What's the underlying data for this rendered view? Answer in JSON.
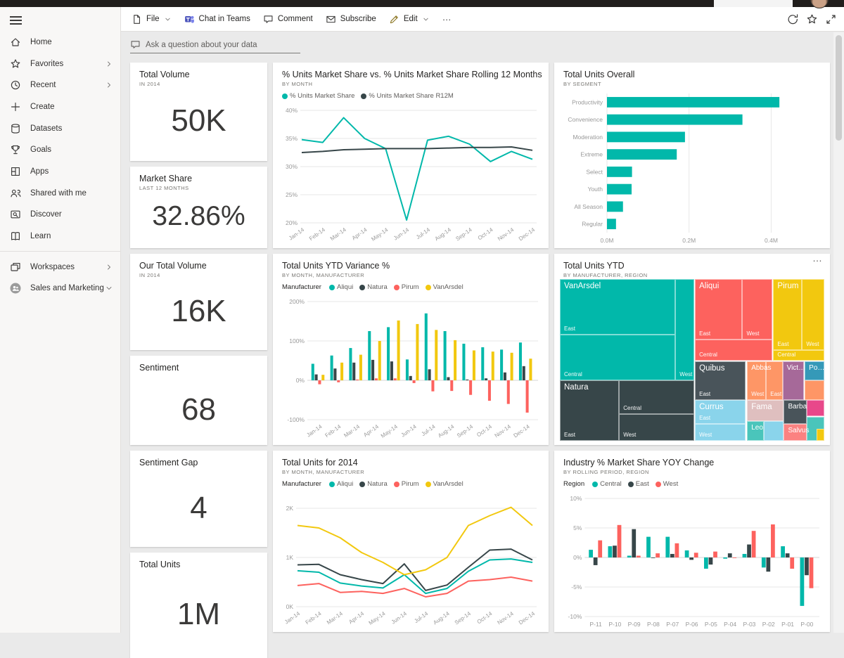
{
  "qna": {
    "placeholder": "Ask a question about your data"
  },
  "toolbar": {
    "items": [
      {
        "label": "File",
        "icon": "file",
        "chevron": true
      },
      {
        "label": "Chat in Teams",
        "icon": "teams",
        "chevron": false
      },
      {
        "label": "Comment",
        "icon": "comment",
        "chevron": false
      },
      {
        "label": "Subscribe",
        "icon": "mail",
        "chevron": false
      },
      {
        "label": "Edit",
        "icon": "pencil",
        "chevron": true
      },
      {
        "label": "…",
        "icon": "more",
        "chevron": false
      }
    ],
    "right_icons": [
      "refresh",
      "star",
      "expand"
    ]
  },
  "sidebar": {
    "items": [
      {
        "label": "Home",
        "icon": "home",
        "chevron": ""
      },
      {
        "label": "Favorites",
        "icon": "star",
        "chevron": "right"
      },
      {
        "label": "Recent",
        "icon": "clock",
        "chevron": "right"
      },
      {
        "label": "Create",
        "icon": "plus",
        "chevron": ""
      },
      {
        "label": "Datasets",
        "icon": "database",
        "chevron": ""
      },
      {
        "label": "Goals",
        "icon": "goal",
        "chevron": ""
      },
      {
        "label": "Apps",
        "icon": "apps",
        "chevron": ""
      },
      {
        "label": "Shared with me",
        "icon": "people",
        "chevron": ""
      },
      {
        "label": "Discover",
        "icon": "discover",
        "chevron": ""
      },
      {
        "label": "Learn",
        "icon": "book",
        "chevron": ""
      }
    ],
    "bottom_items": [
      {
        "label": "Workspaces",
        "icon": "workspaces",
        "chevron": "right"
      },
      {
        "label": "Sales and Marketing",
        "icon": "group-avatar",
        "chevron": "down"
      }
    ]
  },
  "kpis": [
    {
      "id": "total-volume",
      "title": "Total Volume",
      "subtitle": "IN 2014",
      "value": "50K"
    },
    {
      "id": "market-share",
      "title": "Market Share",
      "subtitle": "LAST 12 MONTHS",
      "value": "32.86%"
    },
    {
      "id": "our-total-volume",
      "title": "Our Total Volume",
      "subtitle": "IN 2014",
      "value": "16K"
    },
    {
      "id": "sentiment",
      "title": "Sentiment",
      "subtitle": "",
      "value": "68"
    },
    {
      "id": "sentiment-gap",
      "title": "Sentiment Gap",
      "subtitle": "",
      "value": "4"
    },
    {
      "id": "total-units",
      "title": "Total Units",
      "subtitle": "",
      "value": "1M"
    }
  ],
  "chart_data": [
    {
      "id": "units-market-share",
      "type": "line",
      "title": "% Units Market Share vs. % Units Market Share Rolling 12 Months",
      "subtitle": "BY MONTH",
      "legend_prefix": "",
      "categories": [
        "Jan-14",
        "Feb-14",
        "Mar-14",
        "Apr-14",
        "May-14",
        "Jun-14",
        "Jul-14",
        "Aug-14",
        "Sep-14",
        "Oct-14",
        "Nov-14",
        "Dec-14"
      ],
      "series": [
        {
          "name": "% Units Market Share",
          "color": "#01B8AA",
          "values": [
            34.8,
            34.3,
            38.7,
            35.0,
            33.2,
            20.5,
            34.7,
            35.4,
            34.0,
            30.9,
            32.7,
            31.3
          ]
        },
        {
          "name": "% Units Market Share R12M",
          "color": "#374649",
          "values": [
            32.5,
            32.7,
            33.0,
            33.1,
            33.2,
            33.2,
            33.2,
            33.3,
            33.4,
            33.4,
            33.5,
            32.9
          ]
        }
      ],
      "ylim": [
        20,
        40
      ],
      "yticks": [
        20,
        25,
        30,
        35,
        40
      ],
      "yfmt": "%",
      "rotate_x": true,
      "grid": true
    },
    {
      "id": "total-units-overall",
      "type": "barh",
      "title": "Total Units Overall",
      "subtitle": "BY SEGMENT",
      "categories": [
        "Productivity",
        "Convenience",
        "Moderation",
        "Extreme",
        "Select",
        "Youth",
        "All Season",
        "Regular"
      ],
      "values": [
        0.42,
        0.33,
        0.19,
        0.17,
        0.061,
        0.06,
        0.039,
        0.022
      ],
      "color": "#01B8AA",
      "xlim": [
        0,
        0.49
      ],
      "xticks": [
        0,
        0.2,
        0.4
      ],
      "xtick_labels": [
        "0.0M",
        "0.2M",
        "0.4M"
      ],
      "grid": true
    },
    {
      "id": "ytd-variance",
      "type": "column",
      "title": "Total Units YTD Variance %",
      "subtitle": "BY MONTH, MANUFACTURER",
      "legend_prefix": "Manufacturer",
      "categories": [
        "Jan-14",
        "Feb-14",
        "Mar-14",
        "Apr-14",
        "May-14",
        "Jun-14",
        "Jul-14",
        "Aug-14",
        "Sep-14",
        "Oct-14",
        "Nov-14",
        "Dec-14"
      ],
      "series": [
        {
          "name": "Aliqui",
          "color": "#01B8AA",
          "values": [
            42,
            63,
            82,
            125,
            135,
            53,
            170,
            125,
            93,
            84,
            78,
            96
          ]
        },
        {
          "name": "Natura",
          "color": "#374649",
          "values": [
            15,
            30,
            45,
            52,
            48,
            11,
            28,
            8,
            2,
            5,
            20,
            36
          ]
        },
        {
          "name": "Pirum",
          "color": "#FD625E",
          "values": [
            -10,
            -5,
            2,
            5,
            5,
            -7,
            -28,
            -27,
            -37,
            -52,
            -60,
            -82
          ]
        },
        {
          "name": "VanArsdel",
          "color": "#F2C80F",
          "values": [
            14,
            45,
            65,
            100,
            152,
            143,
            128,
            102,
            76,
            73,
            70,
            55
          ]
        }
      ],
      "ylim": [
        -100,
        200
      ],
      "yticks": [
        -100,
        0,
        100,
        200
      ],
      "yfmt": "%",
      "rotate_x": true,
      "grid": true
    },
    {
      "id": "total-units-ytd",
      "type": "treemap",
      "title": "Total Units YTD",
      "subtitle": "BY MANUFACTURER, REGION",
      "more_icon": "ellipsis",
      "tiles": [
        {
          "t": "VanArsdel",
          "r": "East",
          "c": "#01B8AA",
          "x": 0,
          "y": 0,
          "w": 43.7,
          "h": 34.5
        },
        {
          "r": "Central",
          "c": "#01B8AA",
          "x": 0,
          "y": 34.5,
          "w": 43.7,
          "h": 28.2
        },
        {
          "r": "West",
          "c": "#01B8AA",
          "x": 43.7,
          "y": 0,
          "w": 7.1,
          "h": 62.7
        },
        {
          "t": "Natura",
          "r": "East",
          "c": "#374649",
          "x": 0,
          "y": 62.7,
          "w": 22.4,
          "h": 37.3
        },
        {
          "r": "Central",
          "c": "#374649",
          "x": 22.4,
          "y": 62.7,
          "w": 28.4,
          "h": 20.6
        },
        {
          "r": "West",
          "c": "#374649",
          "x": 22.4,
          "y": 83.3,
          "w": 28.4,
          "h": 16.7
        },
        {
          "t": "Aliqui",
          "r": "East",
          "c": "#FD625E",
          "x": 51.1,
          "y": 0,
          "w": 17.9,
          "h": 37.3
        },
        {
          "r": "West",
          "c": "#FD625E",
          "x": 69,
          "y": 0,
          "w": 11.3,
          "h": 37.3
        },
        {
          "r": "Central",
          "c": "#FD625E",
          "x": 51.1,
          "y": 37.3,
          "w": 29.2,
          "h": 13.1
        },
        {
          "t": "Pirum",
          "r": "East",
          "c": "#F2C80F",
          "x": 80.7,
          "y": 0,
          "w": 10.9,
          "h": 43.9
        },
        {
          "r": "West",
          "c": "#F2C80F",
          "x": 91.6,
          "y": 0,
          "w": 8.4,
          "h": 43.9
        },
        {
          "r": "Central",
          "c": "#F2C80F",
          "x": 80.7,
          "y": 43.9,
          "w": 19.3,
          "h": 6.5
        },
        {
          "t": "Quibus",
          "r": "East",
          "c": "#49545A",
          "x": 51.1,
          "y": 50.7,
          "w": 19.2,
          "h": 23.9
        },
        {
          "t": "Abbas",
          "r": "West",
          "c": "#FE9666",
          "x": 70.8,
          "y": 50.7,
          "w": 7.2,
          "h": 23.9
        },
        {
          "r": "East",
          "c": "#FE9666",
          "x": 78,
          "y": 50.7,
          "w": 6.2,
          "h": 23.9
        },
        {
          "t": "Vict…",
          "c": "#A66999",
          "x": 84.2,
          "y": 50.7,
          "w": 8.2,
          "h": 23.9
        },
        {
          "t": "Po…",
          "c": "#3599B8",
          "x": 92.6,
          "y": 50.7,
          "w": 7.4,
          "h": 11.8
        },
        {
          "c": "#FE9666",
          "x": 92.6,
          "y": 62.5,
          "w": 7.4,
          "h": 12.1
        },
        {
          "t": "Currus",
          "r": "East",
          "c": "#8AD4EB",
          "x": 51.1,
          "y": 74.6,
          "w": 19.2,
          "h": 15
        },
        {
          "r": "West",
          "c": "#8AD4EB",
          "x": 51.1,
          "y": 89.6,
          "w": 19.2,
          "h": 10.4
        },
        {
          "t": "Fama",
          "c": "#DFBFBF",
          "x": 70.8,
          "y": 74.6,
          "w": 13.9,
          "h": 13.1
        },
        {
          "t": "Leo",
          "c": "#4AC5BB",
          "x": 70.8,
          "y": 87.7,
          "w": 6.3,
          "h": 12.3
        },
        {
          "c": "#8AD4EB",
          "x": 77.1,
          "y": 87.7,
          "w": 7.6,
          "h": 12.3
        },
        {
          "t": "Barba",
          "c": "#49545A",
          "x": 84.7,
          "y": 74.6,
          "w": 8.7,
          "h": 14.9
        },
        {
          "t": "Salvus",
          "c": "#FB8281",
          "x": 84.7,
          "y": 89.5,
          "w": 8.7,
          "h": 10.5
        },
        {
          "c": "#E8488A",
          "x": 93.4,
          "y": 74.6,
          "w": 6.6,
          "h": 10.4
        },
        {
          "c": "#4AC5BB",
          "x": 93.4,
          "y": 85,
          "w": 6.6,
          "h": 15
        },
        {
          "c": "#F2C80F",
          "x": 97.2,
          "y": 92.5,
          "w": 2.8,
          "h": 7.5
        }
      ]
    },
    {
      "id": "total-units-2014",
      "type": "line",
      "title": "Total Units for 2014",
      "subtitle": "BY MONTH, MANUFACTURER",
      "legend_prefix": "Manufacturer",
      "categories": [
        "Jan-14",
        "Feb-14",
        "Mar-14",
        "Apr-14",
        "May-14",
        "Jun-14",
        "Jul-14",
        "Aug-14",
        "Sep-14",
        "Oct-14",
        "Nov-14",
        "Dec-14"
      ],
      "series": [
        {
          "name": "Aliqui",
          "color": "#01B8AA",
          "values": [
            0.73,
            0.7,
            0.48,
            0.42,
            0.38,
            0.65,
            0.27,
            0.37,
            0.72,
            0.95,
            0.97,
            0.9
          ]
        },
        {
          "name": "Natura",
          "color": "#374649",
          "values": [
            0.85,
            0.86,
            0.65,
            0.55,
            0.47,
            0.87,
            0.33,
            0.44,
            0.8,
            1.15,
            1.17,
            0.95
          ]
        },
        {
          "name": "Pirum",
          "color": "#FD625E",
          "values": [
            0.43,
            0.47,
            0.29,
            0.31,
            0.27,
            0.37,
            0.2,
            0.27,
            0.52,
            0.55,
            0.6,
            0.52
          ]
        },
        {
          "name": "VanArsdel",
          "color": "#F2C80F",
          "values": [
            1.65,
            1.6,
            1.4,
            1.1,
            0.9,
            0.65,
            0.75,
            1.0,
            1.65,
            1.85,
            2.02,
            1.65
          ]
        }
      ],
      "ylim": [
        0,
        2.2
      ],
      "yticks": [
        0,
        1,
        2
      ],
      "ytick_labels": [
        "0K",
        "1K",
        "2K"
      ],
      "rotate_x": true,
      "grid": true
    },
    {
      "id": "industry-yoy",
      "type": "column",
      "title": "Industry % Market Share YOY Change",
      "subtitle": "BY ROLLING PERIOD, REGION",
      "legend_prefix": "Region",
      "categories": [
        "P-11",
        "P-10",
        "P-09",
        "P-08",
        "P-07",
        "P-06",
        "P-05",
        "P-04",
        "P-03",
        "P-02",
        "P-01",
        "P-00"
      ],
      "series": [
        {
          "name": "Central",
          "color": "#01B8AA",
          "values": [
            1.3,
            1.9,
            0.3,
            3.5,
            3.5,
            1.2,
            -1.9,
            -0.2,
            0.6,
            -1.7,
            1.9,
            -8.2
          ]
        },
        {
          "name": "East",
          "color": "#374649",
          "values": [
            -1.3,
            2.0,
            4.8,
            -0.1,
            0.6,
            -0.4,
            -1.2,
            0.7,
            2.2,
            -2.4,
            0.7,
            -3.0
          ]
        },
        {
          "name": "West",
          "color": "#FD625E",
          "values": [
            2.9,
            5.5,
            0.3,
            0.7,
            2.4,
            0.8,
            1.0,
            -0.1,
            4.5,
            5.6,
            -1.9,
            -5.2
          ]
        }
      ],
      "ylim": [
        -10,
        10
      ],
      "yticks": [
        -10,
        -5,
        0,
        5,
        10
      ],
      "yfmt": "%",
      "rotate_x": false,
      "grid": true
    }
  ],
  "colors": {
    "accent": "#01B8AA",
    "dark": "#374649",
    "red": "#FD625E",
    "yellow": "#F2C80F",
    "canvas": "#eaeaea"
  }
}
